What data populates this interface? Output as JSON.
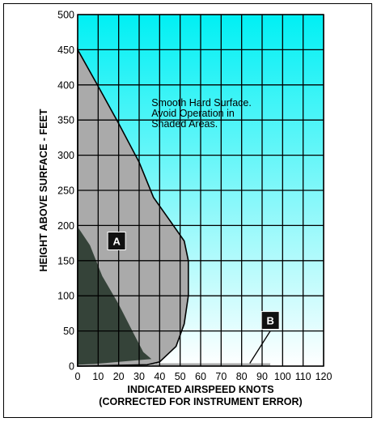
{
  "chart_data": {
    "type": "area",
    "title": "",
    "xlabel": "INDICATED AIRSPEED KNOTS",
    "xlabel_sub": "(CORRECTED FOR INSTRUMENT ERROR)",
    "ylabel": "HEIGHT ABOVE SURFACE - FEET",
    "xlim": [
      0,
      120
    ],
    "ylim": [
      0,
      500
    ],
    "x_ticks": [
      0,
      10,
      20,
      30,
      40,
      50,
      60,
      70,
      80,
      90,
      100,
      110,
      120
    ],
    "y_ticks": [
      0,
      50,
      100,
      150,
      200,
      250,
      300,
      350,
      400,
      450,
      500
    ],
    "grid": true,
    "background_gradient": [
      "#00f0f4",
      "#ffffff"
    ],
    "annotation": [
      "Smooth Hard Surface.",
      "Avoid Operation in",
      "Shaded Areas."
    ],
    "annotation_anchor": {
      "x": 36,
      "y": 370
    },
    "regions": [
      {
        "label": "A",
        "color": "#aaaaaa",
        "label_at": {
          "x": 19,
          "y": 178
        },
        "boundary": [
          {
            "x": 0,
            "y": 450
          },
          {
            "x": 10,
            "y": 398
          },
          {
            "x": 20,
            "y": 345
          },
          {
            "x": 30,
            "y": 290
          },
          {
            "x": 37,
            "y": 240
          },
          {
            "x": 45,
            "y": 207
          },
          {
            "x": 52,
            "y": 178
          },
          {
            "x": 54,
            "y": 150
          },
          {
            "x": 54,
            "y": 100
          },
          {
            "x": 52,
            "y": 60
          },
          {
            "x": 48,
            "y": 28
          },
          {
            "x": 40,
            "y": 6
          },
          {
            "x": 34,
            "y": 2
          },
          {
            "x": 0,
            "y": 0
          }
        ]
      },
      {
        "label": "",
        "color": "#354339",
        "boundary": [
          {
            "x": 0,
            "y": 198
          },
          {
            "x": 6,
            "y": 172
          },
          {
            "x": 12,
            "y": 128
          },
          {
            "x": 20,
            "y": 88
          },
          {
            "x": 27,
            "y": 48
          },
          {
            "x": 32,
            "y": 20
          },
          {
            "x": 36,
            "y": 10
          },
          {
            "x": 20,
            "y": 6
          },
          {
            "x": 8,
            "y": 3
          },
          {
            "x": 0,
            "y": 2
          }
        ]
      },
      {
        "label": "B",
        "color": "#aaaaaa",
        "label_at": {
          "x": 94,
          "y": 65
        },
        "leader": [
          {
            "x": 94,
            "y": 50
          },
          {
            "x": 84,
            "y": 4
          }
        ],
        "boundary": [
          {
            "x": 34,
            "y": 0
          },
          {
            "x": 94,
            "y": 0
          },
          {
            "x": 94,
            "y": 4
          },
          {
            "x": 38,
            "y": 4
          }
        ]
      }
    ]
  }
}
